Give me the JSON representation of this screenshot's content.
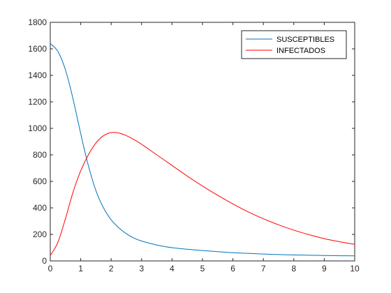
{
  "chart_data": {
    "type": "line",
    "title": "",
    "xlabel": "",
    "ylabel": "",
    "xlim": [
      0,
      10
    ],
    "ylim": [
      0,
      1800
    ],
    "xticks": [
      0,
      1,
      2,
      3,
      4,
      5,
      6,
      7,
      8,
      9,
      10
    ],
    "yticks": [
      0,
      200,
      400,
      600,
      800,
      1000,
      1200,
      1400,
      1600,
      1800
    ],
    "grid": false,
    "legend_position": "top-right",
    "x": [
      0,
      0.25,
      0.5,
      0.75,
      1,
      1.25,
      1.5,
      1.75,
      2,
      2.25,
      2.5,
      2.75,
      3,
      3.5,
      4,
      4.5,
      5,
      5.5,
      6,
      6.5,
      7,
      7.5,
      8,
      8.5,
      9,
      9.5,
      10
    ],
    "series": [
      {
        "name": "SUSCEPTIBLES",
        "color": "#0072BD",
        "values": [
          1640,
          1580,
          1440,
          1220,
          960,
          720,
          530,
          400,
          310,
          250,
          205,
          172,
          150,
          120,
          100,
          88,
          78,
          70,
          62,
          57,
          52,
          48,
          45,
          43,
          41,
          39,
          38
        ]
      },
      {
        "name": "INFECTADOS",
        "color": "#FF0000",
        "values": [
          40,
          140,
          320,
          520,
          680,
          800,
          890,
          945,
          968,
          965,
          945,
          915,
          880,
          800,
          720,
          640,
          565,
          495,
          430,
          370,
          318,
          272,
          232,
          198,
          168,
          145,
          125
        ]
      }
    ]
  }
}
